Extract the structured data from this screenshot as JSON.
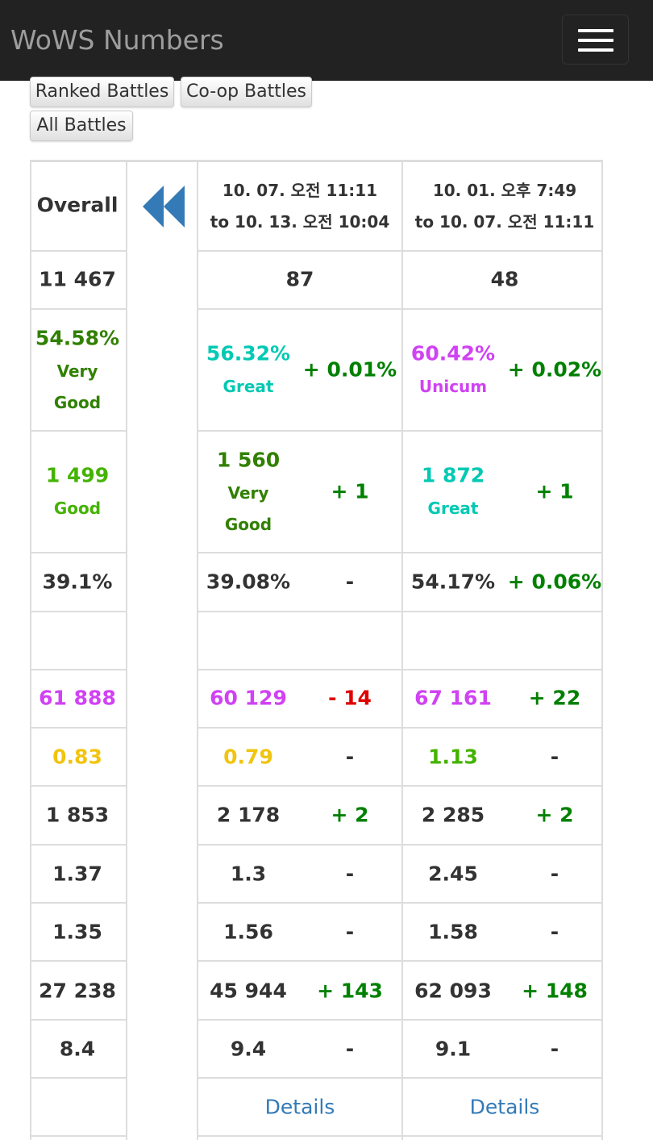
{
  "header": {
    "brand": "WoWS Numbers",
    "menu_icon": "hamburger-menu-icon"
  },
  "mode_buttons": [
    "Ranked Battles",
    "Co-op Battles",
    "All Battles"
  ],
  "table": {
    "overall_label": "Overall",
    "prev_icon": "double-chevron-left-icon",
    "periods": [
      {
        "line1": "10. 07. 오전 11:11",
        "line2": "to 10. 13. 오전 10:04"
      },
      {
        "line1": "10. 01. 오후 7:49",
        "line2": "to 10. 07. 오전 11:11"
      }
    ],
    "overall": {
      "battles": "11 467",
      "winrate": "54.58%",
      "winrate_rating_1": "Very",
      "winrate_rating_2": "Good",
      "pr": "1 499",
      "pr_rating": "Good",
      "survival": "39.1%",
      "avg_damage": "61 888",
      "kd": "0.83",
      "avg_xp": "1 853",
      "avg_frags": "1.37",
      "avg_planes": "1.35",
      "stat_9": "27 238",
      "stat_10": "8.4"
    },
    "period1": {
      "battles": "87",
      "winrate": "56.32%",
      "winrate_rating": "Great",
      "winrate_delta": "+ 0.01%",
      "pr": "1 560",
      "pr_rating_1": "Very",
      "pr_rating_2": "Good",
      "pr_delta": "+ 1",
      "survival": "39.08%",
      "survival_delta": "-",
      "avg_damage": "60 129",
      "avg_damage_delta": "- 14",
      "kd": "0.79",
      "kd_delta": "-",
      "avg_xp": "2 178",
      "avg_xp_delta": "+ 2",
      "avg_frags": "1.3",
      "avg_frags_delta": "-",
      "avg_planes": "1.56",
      "avg_planes_delta": "-",
      "stat_9": "45 944",
      "stat_9_delta": "+ 143",
      "stat_10": "9.4",
      "stat_10_delta": "-",
      "details": "Details"
    },
    "period2": {
      "battles": "48",
      "winrate": "60.42%",
      "winrate_rating": "Unicum",
      "winrate_delta": "+ 0.02%",
      "pr": "1 872",
      "pr_rating": "Great",
      "pr_delta": "+ 1",
      "survival": "54.17%",
      "survival_delta": "+ 0.06%",
      "avg_damage": "67 161",
      "avg_damage_delta": "+ 22",
      "kd": "1.13",
      "kd_delta": "-",
      "avg_xp": "2 285",
      "avg_xp_delta": "+ 2",
      "avg_frags": "2.45",
      "avg_frags_delta": "-",
      "avg_planes": "1.58",
      "avg_planes_delta": "-",
      "stat_9": "62 093",
      "stat_9_delta": "+ 148",
      "stat_10": "9.1",
      "stat_10_delta": "-",
      "details": "Details"
    }
  },
  "colors": {
    "navbar": "#222222",
    "very_good": "#318000",
    "good": "#44b300",
    "great": "#02c9b3",
    "unicum": "#d042f3",
    "average": "#f1c40f",
    "positive_delta": "#008000",
    "negative_delta": "#e00000",
    "link": "#337ab7"
  }
}
